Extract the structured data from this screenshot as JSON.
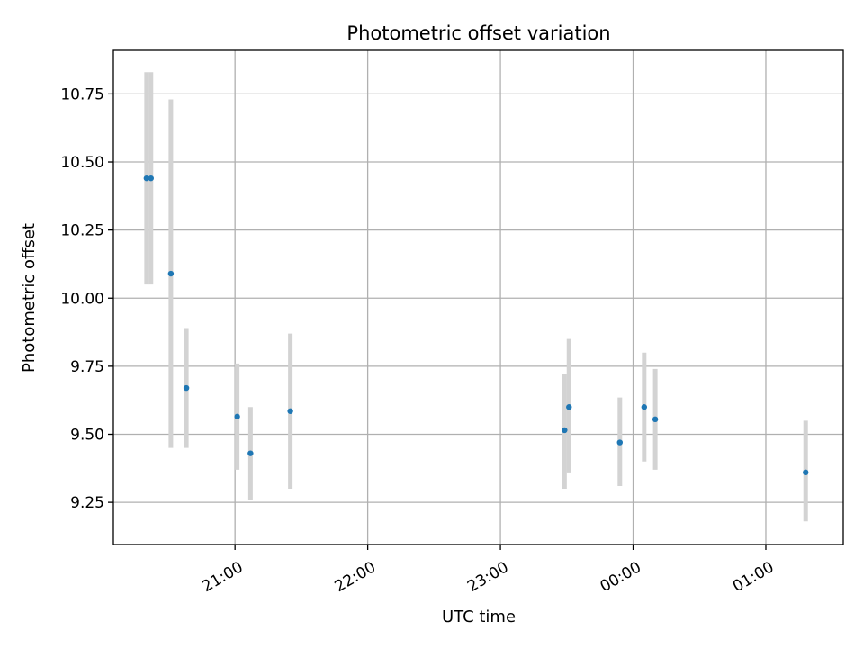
{
  "chart_data": {
    "type": "scatter",
    "title": "Photometric offset variation",
    "xlabel": "UTC time",
    "ylabel": "Photometric offset",
    "grid": true,
    "legend": "none",
    "error_bars": true,
    "colors": {
      "point": "#1f77b4",
      "error_bar": "#d3d3d3",
      "grid": "#b0b0b0"
    },
    "xlim": [
      "20:05",
      "01:35"
    ],
    "ylim": [
      9.095,
      10.91
    ],
    "x_ticks": [
      "21:00",
      "22:00",
      "23:00",
      "00:00",
      "01:00"
    ],
    "y_ticks": [
      "9.25",
      "9.50",
      "9.75",
      "10.00",
      "10.25",
      "10.50",
      "10.75"
    ],
    "points": [
      {
        "x": "20:20",
        "y": 10.44,
        "yerr_low": 10.05,
        "yerr_high": 10.83
      },
      {
        "x": "20:22",
        "y": 10.44,
        "yerr_low": 10.05,
        "yerr_high": 10.83
      },
      {
        "x": "20:31",
        "y": 10.09,
        "yerr_low": 9.45,
        "yerr_high": 10.73
      },
      {
        "x": "20:38",
        "y": 9.67,
        "yerr_low": 9.45,
        "yerr_high": 9.89
      },
      {
        "x": "21:01",
        "y": 9.565,
        "yerr_low": 9.37,
        "yerr_high": 9.76
      },
      {
        "x": "21:07",
        "y": 9.43,
        "yerr_low": 9.26,
        "yerr_high": 9.6
      },
      {
        "x": "21:25",
        "y": 9.585,
        "yerr_low": 9.3,
        "yerr_high": 9.87
      },
      {
        "x": "23:29",
        "y": 9.515,
        "yerr_low": 9.3,
        "yerr_high": 9.72
      },
      {
        "x": "23:31",
        "y": 9.6,
        "yerr_low": 9.36,
        "yerr_high": 9.85
      },
      {
        "x": "23:54",
        "y": 9.47,
        "yerr_low": 9.31,
        "yerr_high": 9.635
      },
      {
        "x": "00:05",
        "y": 9.6,
        "yerr_low": 9.4,
        "yerr_high": 9.8
      },
      {
        "x": "00:10",
        "y": 9.555,
        "yerr_low": 9.37,
        "yerr_high": 9.74
      },
      {
        "x": "01:18",
        "y": 9.36,
        "yerr_low": 9.18,
        "yerr_high": 9.55
      }
    ]
  }
}
